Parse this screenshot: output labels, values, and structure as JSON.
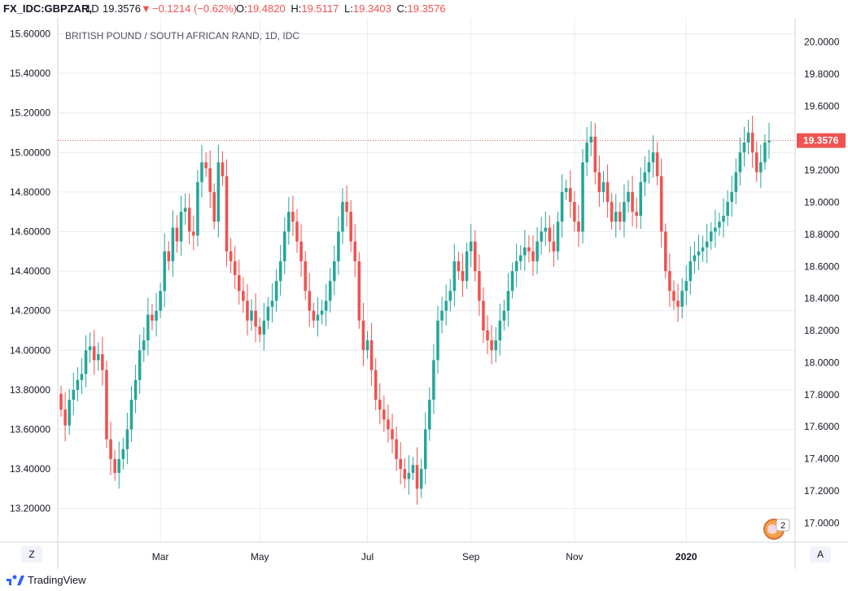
{
  "header": {
    "symbol": "FX_IDC:GBPZAR,",
    "timeframe": "1D",
    "last_price": "19.3576",
    "change": "−0.1214 (−0.62%)",
    "open_label": "O:",
    "open_value": "19.4820",
    "high_label": "H:",
    "high_value": "19.5117",
    "low_label": "L:",
    "low_value": "19.3403",
    "close_label": "C:",
    "close_value": "19.3576"
  },
  "colors": {
    "up": "#26a69a",
    "down": "#ef5350",
    "grid": "#e9ecf2",
    "axis_text": "#131722",
    "price_line": "#ef5350"
  },
  "footer": {
    "brand": "TradingView",
    "left_scale_button": "Z",
    "right_scale_button": "A",
    "badge": "2"
  },
  "chart_data": {
    "type": "candlestick",
    "title": "BRITISH POUND / SOUTH AFRICAN RAND, 1D, IDC",
    "x_labels": [
      "Mar",
      "May",
      "Jul",
      "Sep",
      "Nov",
      "2020"
    ],
    "left_axis": {
      "ticks": [
        "15.60000",
        "15.40000",
        "15.20000",
        "15.00000",
        "14.80000",
        "14.60000",
        "14.40000",
        "14.20000",
        "14.00000",
        "13.80000",
        "13.60000",
        "13.40000",
        "13.20000"
      ],
      "range": [
        13.03,
        15.68
      ]
    },
    "right_axis": {
      "ticks": [
        "20.0000",
        "19.8000",
        "19.6000",
        "19.4000",
        "19.2000",
        "19.0000",
        "18.8000",
        "18.6000",
        "18.4000",
        "18.2000",
        "18.0000",
        "17.8000",
        "17.6000",
        "17.4000",
        "17.2000",
        "17.0000"
      ],
      "range": [
        16.88,
        20.15
      ]
    },
    "last_price_label": "19.3576",
    "last_price_left_scale": 15.06,
    "series": [
      {
        "name": "GBPZAR close (left scale)",
        "close": [
          13.7,
          13.62,
          13.75,
          13.8,
          13.85,
          13.88,
          14.0,
          14.02,
          13.95,
          13.98,
          13.9,
          13.55,
          13.45,
          13.38,
          13.45,
          13.5,
          13.6,
          13.75,
          13.85,
          14.0,
          14.05,
          14.18,
          14.15,
          14.2,
          14.3,
          14.5,
          14.45,
          14.62,
          14.55,
          14.7,
          14.72,
          14.6,
          14.58,
          14.85,
          14.95,
          14.92,
          14.8,
          14.65,
          14.95,
          14.88,
          14.5,
          14.45,
          14.38,
          14.3,
          14.25,
          14.15,
          14.2,
          14.12,
          14.08,
          14.15,
          14.22,
          14.25,
          14.35,
          14.45,
          14.6,
          14.7,
          14.65,
          14.55,
          14.45,
          14.3,
          14.2,
          14.15,
          14.18,
          14.2,
          14.25,
          14.35,
          14.45,
          14.6,
          14.75,
          14.7,
          14.55,
          14.45,
          14.15,
          14.0,
          14.05,
          13.9,
          13.75,
          13.7,
          13.65,
          13.6,
          13.55,
          13.45,
          13.4,
          13.35,
          13.38,
          13.42,
          13.3,
          13.4,
          13.6,
          13.75,
          13.95,
          14.15,
          14.2,
          14.25,
          14.3,
          14.45,
          14.4,
          14.35,
          14.5,
          14.55,
          14.4,
          14.25,
          14.1,
          14.05,
          14.0,
          14.05,
          14.15,
          14.2,
          14.3,
          14.4,
          14.45,
          14.48,
          14.52,
          14.5,
          14.45,
          14.55,
          14.6,
          14.62,
          14.55,
          14.5,
          14.65,
          14.8,
          14.82,
          14.75,
          14.65,
          14.6,
          14.95,
          15.05,
          15.08,
          14.9,
          14.8,
          14.85,
          14.75,
          14.65,
          14.7,
          14.65,
          14.75,
          14.8,
          14.7,
          14.68,
          14.85,
          14.9,
          14.95,
          15.0,
          14.88,
          14.6,
          14.4,
          14.3,
          14.25,
          14.22,
          14.3,
          14.35,
          14.45,
          14.48,
          14.5,
          14.52,
          14.55,
          14.6,
          14.62,
          14.65,
          14.68,
          14.75,
          14.8,
          14.9,
          15.0,
          15.05,
          15.1,
          15.0,
          14.9,
          14.95,
          15.05,
          15.06
        ]
      }
    ]
  }
}
